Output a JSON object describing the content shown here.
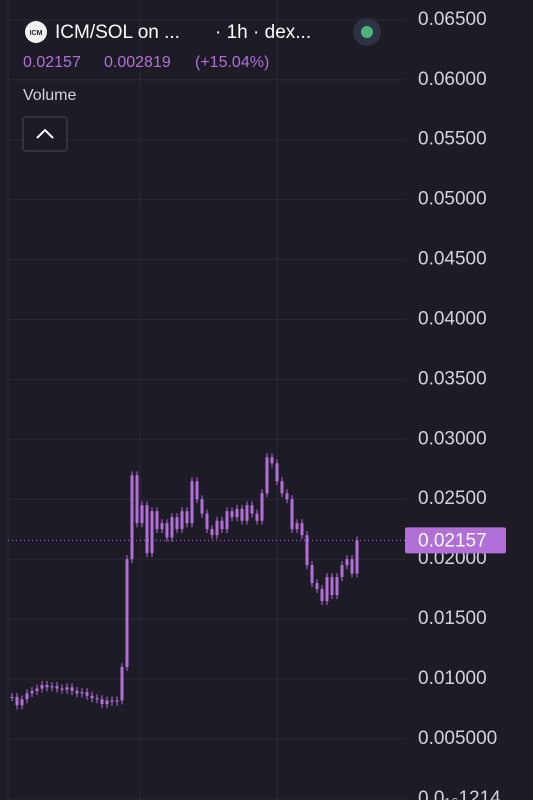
{
  "header": {
    "logo": "ICM",
    "symbol": "ICM/SOL on ...",
    "interval": "· 1h · dex...",
    "price": "0.02157",
    "change": "0.002819",
    "change_pct": "(+15.04%)",
    "volume_label": "Volume"
  },
  "chart_data": {
    "type": "candlestick",
    "color": "#b36fd8",
    "grid": true,
    "ylim": [
      -0.0001,
      0.06666
    ],
    "yticks": [
      {
        "value": 0.065,
        "label": "0.06500"
      },
      {
        "value": 0.06,
        "label": "0.06000"
      },
      {
        "value": 0.055,
        "label": "0.05500"
      },
      {
        "value": 0.05,
        "label": "0.05000"
      },
      {
        "value": 0.045,
        "label": "0.04500"
      },
      {
        "value": 0.04,
        "label": "0.04000"
      },
      {
        "value": 0.035,
        "label": "0.03500"
      },
      {
        "value": 0.03,
        "label": "0.03000"
      },
      {
        "value": 0.025,
        "label": "0.02500"
      },
      {
        "value": 0.02,
        "label": "0.02000"
      },
      {
        "value": 0.015,
        "label": "0.01500"
      },
      {
        "value": 0.01,
        "label": "0.01000"
      },
      {
        "value": 0.005,
        "label": "0.005000"
      },
      {
        "value": 1.214e-17,
        "label": "0.0₁₆1214"
      }
    ],
    "last_price": 0.02157,
    "values": [
      0.0085,
      0.0078,
      0.0083,
      0.0088,
      0.009,
      0.0092,
      0.0095,
      0.0093,
      0.0094,
      0.0092,
      0.0091,
      0.0093,
      0.009,
      0.0088,
      0.0089,
      0.0086,
      0.0084,
      0.0083,
      0.0079,
      0.0082,
      0.0081,
      0.0082,
      0.011,
      0.02,
      0.027,
      0.023,
      0.0245,
      0.0205,
      0.024,
      0.0225,
      0.023,
      0.0218,
      0.0235,
      0.0225,
      0.024,
      0.023,
      0.0265,
      0.025,
      0.0238,
      0.0225,
      0.022,
      0.0232,
      0.0225,
      0.024,
      0.0235,
      0.0242,
      0.0232,
      0.0245,
      0.0238,
      0.0232,
      0.0255,
      0.0285,
      0.028,
      0.0265,
      0.0255,
      0.025,
      0.0225,
      0.023,
      0.022,
      0.0195,
      0.018,
      0.0175,
      0.0165,
      0.0185,
      0.017,
      0.0185,
      0.0195,
      0.02,
      0.0188,
      0.02157
    ]
  }
}
